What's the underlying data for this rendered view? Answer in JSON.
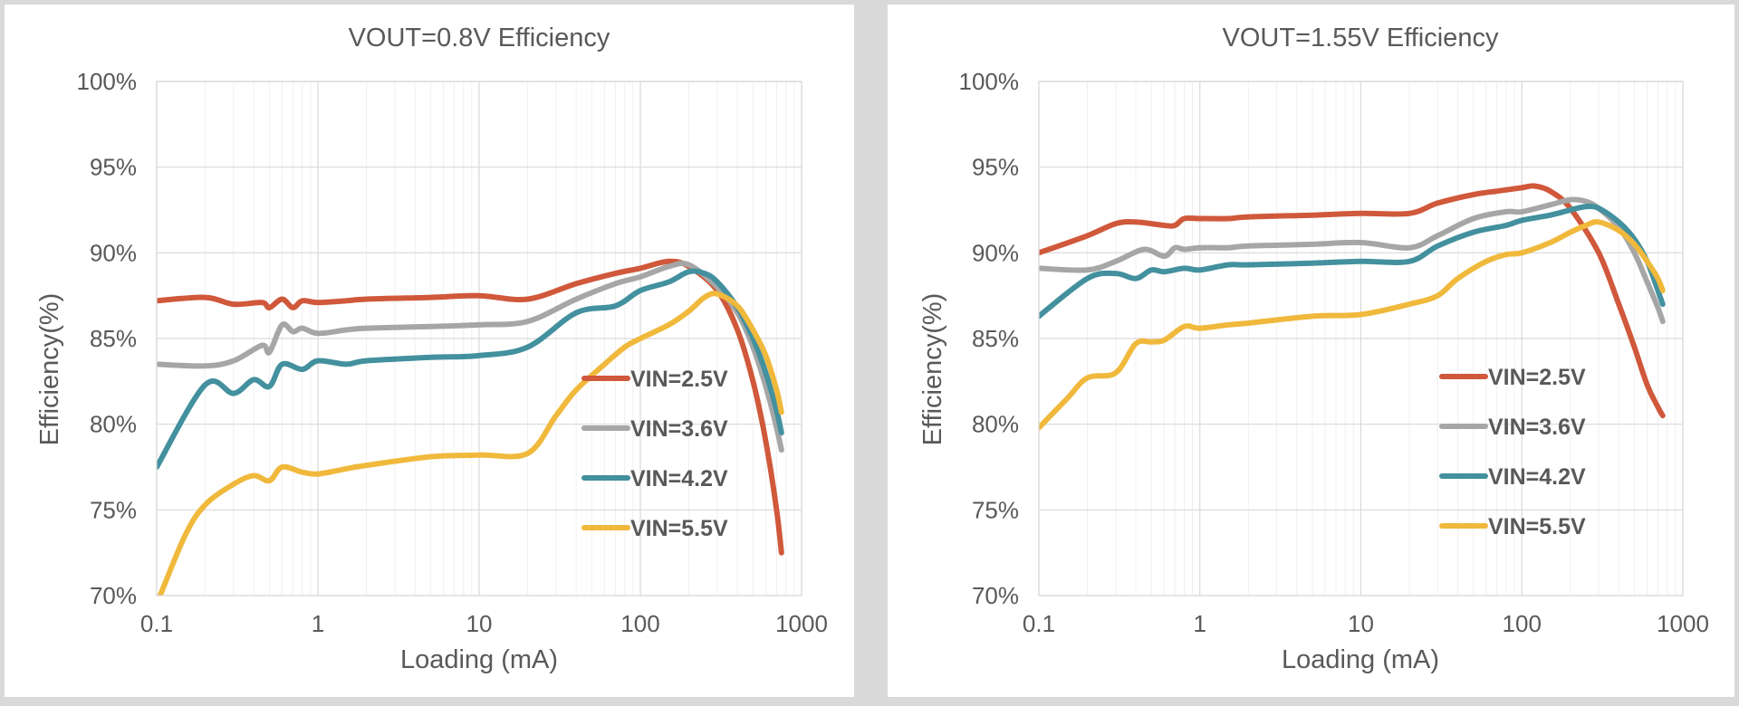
{
  "chart_data": [
    {
      "type": "line",
      "title": "VOUT=0.8V Efficiency",
      "xlabel": "Loading (mA)",
      "ylabel": "Efficiency(%)",
      "xscale": "log",
      "xlim": [
        0.1,
        1000
      ],
      "ylim": [
        70,
        100
      ],
      "x_ticks": [
        "0.1",
        "1",
        "10",
        "100",
        "1000"
      ],
      "y_ticks": [
        "70%",
        "75%",
        "80%",
        "85%",
        "90%",
        "95%",
        "100%"
      ],
      "grid": true,
      "legend_position": "bottom-right",
      "series": [
        {
          "name": "VIN=2.5V",
          "color": "#d0583b",
          "x": [
            0.1,
            0.2,
            0.3,
            0.45,
            0.5,
            0.6,
            0.7,
            0.8,
            1,
            1.5,
            2,
            5,
            10,
            20,
            40,
            70,
            100,
            150,
            200,
            300,
            400,
            500,
            600,
            700,
            750
          ],
          "y": [
            87.2,
            87.4,
            87.0,
            87.1,
            86.8,
            87.3,
            86.8,
            87.2,
            87.1,
            87.2,
            87.3,
            87.4,
            87.5,
            87.3,
            88.2,
            88.8,
            89.1,
            89.5,
            89.2,
            87.8,
            85.5,
            82.5,
            79.0,
            75.0,
            72.5
          ]
        },
        {
          "name": "VIN=3.6V",
          "color": "#a6a6a6",
          "x": [
            0.1,
            0.2,
            0.3,
            0.45,
            0.5,
            0.6,
            0.7,
            0.8,
            1,
            1.5,
            2,
            5,
            10,
            20,
            40,
            70,
            100,
            150,
            200,
            300,
            400,
            500,
            600,
            700,
            750
          ],
          "y": [
            83.5,
            83.4,
            83.7,
            84.6,
            84.2,
            85.8,
            85.4,
            85.6,
            85.3,
            85.5,
            85.6,
            85.7,
            85.8,
            86.0,
            87.3,
            88.2,
            88.6,
            89.2,
            89.3,
            88.0,
            86.5,
            84.5,
            82.2,
            79.8,
            78.5
          ]
        },
        {
          "name": "VIN=4.2V",
          "color": "#43909e",
          "x": [
            0.1,
            0.2,
            0.3,
            0.4,
            0.5,
            0.6,
            0.8,
            1,
            1.5,
            2,
            5,
            10,
            20,
            40,
            70,
            100,
            150,
            200,
            250,
            300,
            400,
            500,
            600,
            700,
            750
          ],
          "y": [
            77.5,
            82.3,
            81.8,
            82.6,
            82.2,
            83.5,
            83.2,
            83.7,
            83.5,
            83.7,
            83.9,
            84.0,
            84.5,
            86.5,
            86.9,
            87.8,
            88.3,
            88.9,
            88.8,
            88.3,
            86.8,
            85.0,
            83.0,
            80.8,
            79.5
          ]
        },
        {
          "name": "VIN=5.5V",
          "color": "#f0b93c",
          "x": [
            0.1,
            0.15,
            0.2,
            0.3,
            0.4,
            0.5,
            0.6,
            0.8,
            1,
            1.5,
            2,
            5,
            10,
            20,
            30,
            40,
            60,
            80,
            100,
            150,
            200,
            250,
            300,
            400,
            500,
            600,
            700,
            750
          ],
          "y": [
            69.5,
            73.5,
            75.3,
            76.5,
            77.0,
            76.7,
            77.5,
            77.2,
            77.1,
            77.4,
            77.6,
            78.1,
            78.2,
            78.3,
            80.5,
            82.0,
            83.5,
            84.5,
            85.0,
            85.8,
            86.6,
            87.4,
            87.6,
            86.9,
            85.5,
            84.0,
            82.0,
            80.7
          ]
        }
      ]
    },
    {
      "type": "line",
      "title": "VOUT=1.55V Efficiency",
      "xlabel": "Loading (mA)",
      "ylabel": "Efficiency(%)",
      "xscale": "log",
      "xlim": [
        0.1,
        1000
      ],
      "ylim": [
        70,
        100
      ],
      "x_ticks": [
        "0.1",
        "1",
        "10",
        "100",
        "1000"
      ],
      "y_ticks": [
        "70%",
        "75%",
        "80%",
        "85%",
        "90%",
        "95%",
        "100%"
      ],
      "grid": true,
      "legend_position": "bottom-right",
      "series": [
        {
          "name": "VIN=2.5V",
          "color": "#d0583b",
          "x": [
            0.1,
            0.2,
            0.3,
            0.4,
            0.6,
            0.7,
            0.8,
            1,
            1.5,
            2,
            5,
            10,
            20,
            30,
            50,
            70,
            100,
            120,
            150,
            200,
            300,
            400,
            500,
            600,
            700,
            750
          ],
          "y": [
            90.0,
            91.0,
            91.7,
            91.8,
            91.6,
            91.6,
            92.0,
            92.0,
            92.0,
            92.1,
            92.2,
            92.3,
            92.3,
            92.9,
            93.4,
            93.6,
            93.8,
            93.9,
            93.6,
            92.6,
            90.0,
            87.0,
            84.5,
            82.3,
            81.0,
            80.5
          ]
        },
        {
          "name": "VIN=3.6V",
          "color": "#a6a6a6",
          "x": [
            0.1,
            0.2,
            0.3,
            0.45,
            0.6,
            0.7,
            0.8,
            1,
            1.5,
            2,
            5,
            10,
            20,
            30,
            50,
            80,
            100,
            150,
            200,
            250,
            300,
            400,
            500,
            600,
            700,
            750
          ],
          "y": [
            89.1,
            89.0,
            89.5,
            90.2,
            89.8,
            90.3,
            90.2,
            90.3,
            90.3,
            90.4,
            90.5,
            90.6,
            90.3,
            91.0,
            92.0,
            92.4,
            92.4,
            92.8,
            93.1,
            93.0,
            92.6,
            91.5,
            90.0,
            88.3,
            86.8,
            86.0
          ]
        },
        {
          "name": "VIN=4.2V",
          "color": "#43909e",
          "x": [
            0.1,
            0.2,
            0.3,
            0.4,
            0.5,
            0.6,
            0.8,
            1,
            1.5,
            2,
            5,
            10,
            20,
            30,
            50,
            80,
            100,
            150,
            200,
            250,
            300,
            400,
            500,
            600,
            700,
            750
          ],
          "y": [
            86.3,
            88.5,
            88.8,
            88.5,
            89.0,
            88.9,
            89.1,
            89.0,
            89.3,
            89.3,
            89.4,
            89.5,
            89.5,
            90.4,
            91.2,
            91.6,
            91.9,
            92.2,
            92.5,
            92.7,
            92.6,
            91.8,
            90.8,
            89.5,
            87.8,
            87.0
          ]
        },
        {
          "name": "VIN=5.5V",
          "color": "#f0b93c",
          "x": [
            0.1,
            0.15,
            0.2,
            0.3,
            0.4,
            0.5,
            0.6,
            0.8,
            1,
            1.5,
            2,
            5,
            10,
            20,
            30,
            40,
            60,
            80,
            100,
            150,
            200,
            250,
            300,
            400,
            500,
            600,
            700,
            750
          ],
          "y": [
            79.8,
            81.5,
            82.7,
            83.0,
            84.7,
            84.8,
            84.9,
            85.7,
            85.6,
            85.8,
            85.9,
            86.3,
            86.4,
            87.0,
            87.5,
            88.5,
            89.5,
            89.9,
            90.0,
            90.6,
            91.2,
            91.6,
            91.8,
            91.3,
            90.5,
            89.5,
            88.5,
            87.8
          ]
        }
      ]
    }
  ]
}
